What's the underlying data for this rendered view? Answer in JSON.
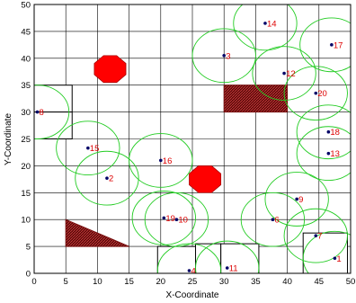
{
  "chart_data": {
    "type": "scatter",
    "title": "",
    "xlabel": "X-Coordinate",
    "ylabel": "Y-Coordinate",
    "xlim": [
      0,
      50
    ],
    "ylim": [
      0,
      50
    ],
    "xticks": [
      0,
      5,
      10,
      15,
      20,
      25,
      30,
      35,
      40,
      45,
      50
    ],
    "yticks": [
      0,
      5,
      10,
      15,
      20,
      25,
      30,
      35,
      40,
      45,
      50
    ],
    "grid": true,
    "nodes": [
      {
        "label": "1",
        "x": 47.5,
        "y": 2.8
      },
      {
        "label": "2",
        "x": 11.5,
        "y": 17.7
      },
      {
        "label": "3",
        "x": 30.0,
        "y": 40.5
      },
      {
        "label": "4",
        "x": 24.5,
        "y": 0.5
      },
      {
        "label": "6",
        "x": 37.7,
        "y": 10.0
      },
      {
        "label": "7",
        "x": 44.5,
        "y": 7.0
      },
      {
        "label": "8",
        "x": 0.5,
        "y": 30.0
      },
      {
        "label": "9",
        "x": 41.5,
        "y": 13.8
      },
      {
        "label": "10",
        "x": 22.5,
        "y": 10.0
      },
      {
        "label": "11",
        "x": 30.5,
        "y": 1.0
      },
      {
        "label": "12",
        "x": 39.5,
        "y": 37.2
      },
      {
        "label": "13",
        "x": 46.5,
        "y": 22.3
      },
      {
        "label": "14",
        "x": 36.5,
        "y": 46.5
      },
      {
        "label": "15",
        "x": 8.5,
        "y": 23.3
      },
      {
        "label": "16",
        "x": 20.0,
        "y": 21.0
      },
      {
        "label": "17",
        "x": 47.0,
        "y": 42.5
      },
      {
        "label": "18",
        "x": 46.5,
        "y": 26.3
      },
      {
        "label": "19",
        "x": 20.5,
        "y": 10.3
      },
      {
        "label": "20",
        "x": 44.5,
        "y": 33.5
      }
    ],
    "coverage_radius": 5,
    "obstacles": {
      "hatched": [
        {
          "shape": "rectangle",
          "x": [
            30,
            40
          ],
          "y": [
            30,
            35
          ]
        },
        {
          "shape": "triangle",
          "points": [
            [
              5,
              10
            ],
            [
              5,
              5
            ],
            [
              15,
              5
            ]
          ]
        }
      ],
      "octagons": [
        {
          "cx": 12,
          "cy": 38,
          "r": 2.7
        },
        {
          "cx": 27,
          "cy": 17.5,
          "r": 2.7
        }
      ],
      "outlined_rectangles": [
        {
          "x": [
            0,
            6
          ],
          "y": [
            30,
            35
          ]
        },
        {
          "x": [
            0,
            6
          ],
          "y": [
            25,
            30
          ]
        },
        {
          "x": [
            19.5,
            29.5
          ],
          "y": [
            0,
            5
          ]
        },
        {
          "x": [
            25.5,
            29.5
          ],
          "y": [
            0,
            5.5
          ]
        },
        {
          "x": [
            29.5,
            35.5
          ],
          "y": [
            0,
            5.5
          ]
        },
        {
          "x": [
            42.5,
            49.5
          ],
          "y": [
            0,
            7.5
          ]
        }
      ]
    },
    "colors": {
      "circle": "#22cc22",
      "label": "#dd0000",
      "dot": "#000066",
      "octagon": "#ff0000",
      "hatch": "#7a1010",
      "grid": "#000000",
      "outline": "#000000"
    }
  }
}
